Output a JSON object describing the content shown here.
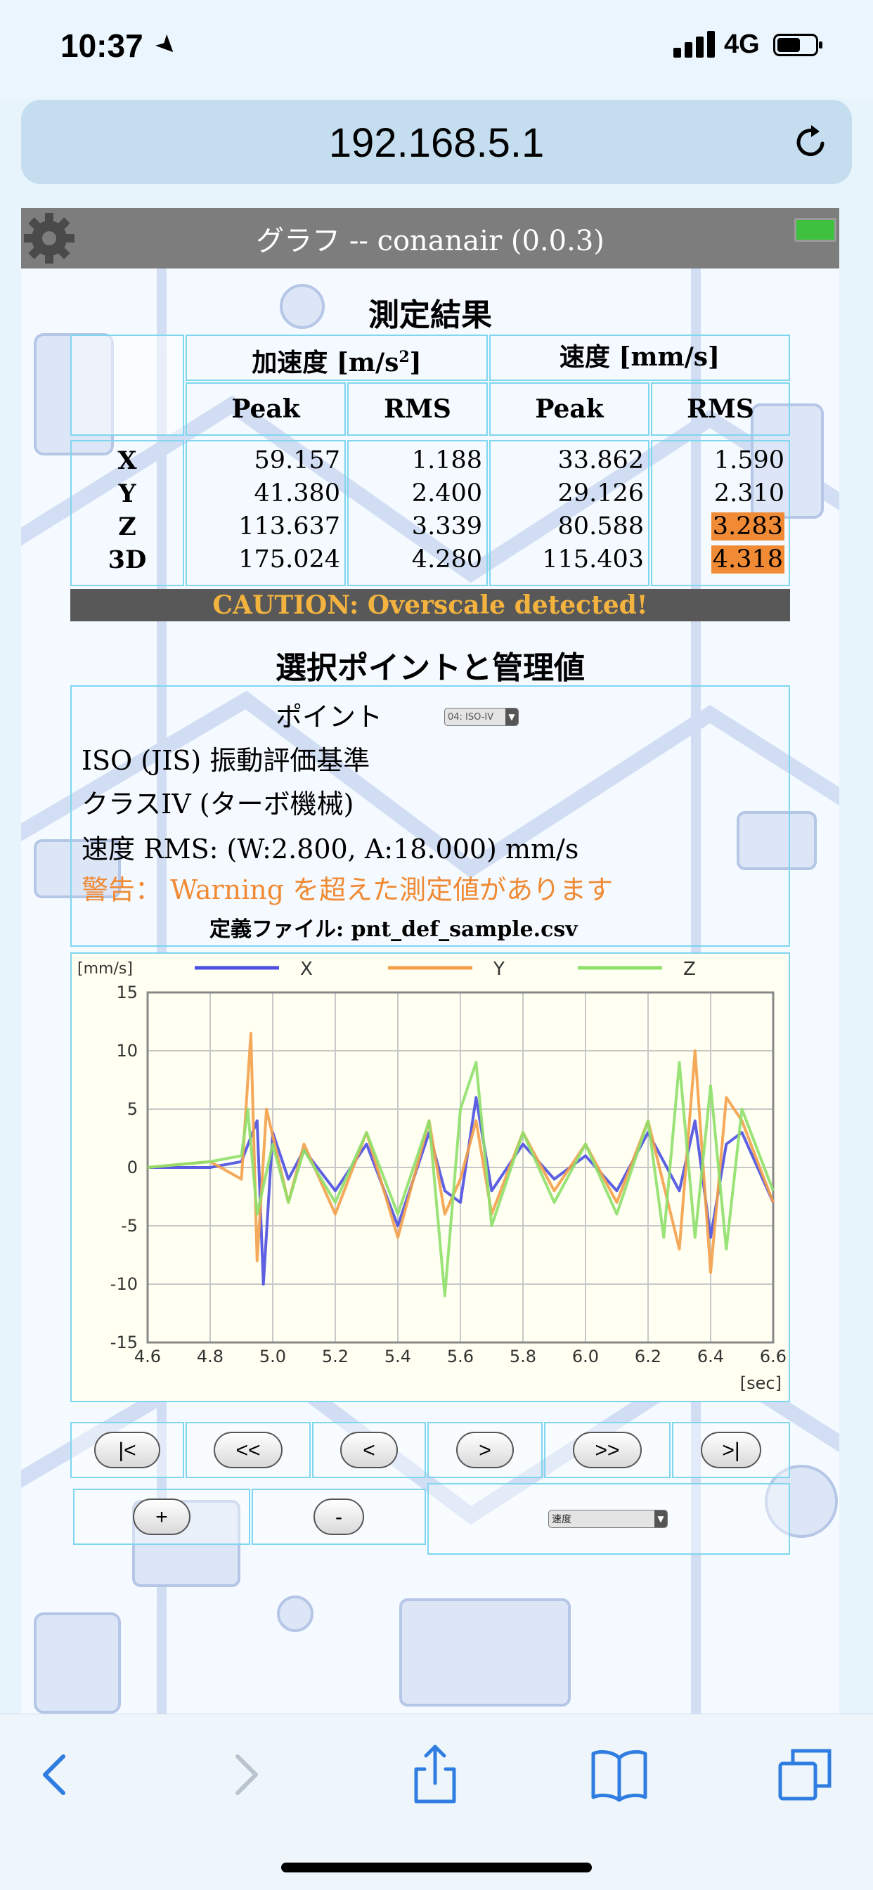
{
  "status_bar": {
    "time": "10:37",
    "network": "4G"
  },
  "browser": {
    "url": "192.168.5.1"
  },
  "header": {
    "title": "グラフ -- conanair (0.0.3)"
  },
  "results": {
    "title": "測定結果",
    "group_accel": "加速度 [m/s",
    "group_accel_sup": "2",
    "group_accel_close": "]",
    "group_vel": "速度 [mm/s]",
    "sub_headers": [
      "Peak",
      "RMS",
      "Peak",
      "RMS"
    ],
    "rows": [
      {
        "label": "X",
        "acc_peak": "59.157",
        "acc_rms": "1.188",
        "vel_peak": "33.862",
        "vel_rms": "1.590"
      },
      {
        "label": "Y",
        "acc_peak": "41.380",
        "acc_rms": "2.400",
        "vel_peak": "29.126",
        "vel_rms": "2.310"
      },
      {
        "label": "Z",
        "acc_peak": "113.637",
        "acc_rms": "3.339",
        "vel_peak": "80.588",
        "vel_rms": "3.283"
      },
      {
        "label": "3D",
        "acc_peak": "175.024",
        "acc_rms": "4.280",
        "vel_peak": "115.403",
        "vel_rms": "4.318"
      }
    ],
    "highlight_color": "#f08a34",
    "caution": "CAUTION: Overscale detected!"
  },
  "info": {
    "title": "選択ポイントと管理値",
    "point_label": "ポイント",
    "point_select": "04: ISO-IV",
    "standard": "ISO (JIS) 振動評価基準",
    "class": "クラスIV (ターボ機械)",
    "limits": "速度 RMS: (W:2.800, A:18.000) mm/s",
    "warning": "警告： Warning を超えた測定値があります",
    "def_file": "定義ファイル: pnt_def_sample.csv"
  },
  "chart_data": {
    "type": "line",
    "ylabel": "[mm/s]",
    "xlabel": "[sec]",
    "xlim": [
      4.6,
      6.6
    ],
    "ylim": [
      -15,
      15
    ],
    "x_ticks": [
      "4.6",
      "4.8",
      "5.0",
      "5.2",
      "5.4",
      "5.6",
      "5.8",
      "6.0",
      "6.2",
      "6.4",
      "6.6"
    ],
    "y_ticks": [
      "15",
      "10",
      "5",
      "0",
      "-5",
      "-10",
      "-15"
    ],
    "grid": true,
    "legend_placement": "top",
    "series": [
      {
        "name": "X",
        "color": "#4b4fe0",
        "x": [
          4.6,
          4.8,
          4.9,
          4.95,
          4.97,
          5.0,
          5.05,
          5.1,
          5.2,
          5.3,
          5.4,
          5.5,
          5.55,
          5.6,
          5.65,
          5.7,
          5.8,
          5.9,
          6.0,
          6.1,
          6.2,
          6.3,
          6.35,
          6.4,
          6.45,
          6.5,
          6.6
        ],
        "y": [
          0,
          0,
          0.5,
          4,
          -10,
          3,
          -1,
          1.5,
          -2,
          2,
          -5,
          3,
          -2,
          -3,
          6,
          -2,
          2,
          -1,
          1,
          -2,
          3,
          -2,
          4,
          -6,
          2,
          3,
          -3
        ]
      },
      {
        "name": "Y",
        "color": "#f4a04a",
        "x": [
          4.6,
          4.8,
          4.9,
          4.93,
          4.95,
          4.98,
          5.05,
          5.1,
          5.2,
          5.3,
          5.4,
          5.5,
          5.55,
          5.6,
          5.65,
          5.7,
          5.8,
          5.9,
          6.0,
          6.1,
          6.2,
          6.3,
          6.35,
          6.4,
          6.45,
          6.5,
          6.6
        ],
        "y": [
          0,
          0.5,
          -1,
          11.5,
          -8,
          5,
          -3,
          2,
          -4,
          3,
          -6,
          4,
          -4,
          -1,
          4,
          -4,
          3,
          -2,
          2,
          -3,
          4,
          -7,
          10,
          -9,
          6,
          4,
          -3
        ]
      },
      {
        "name": "Z",
        "color": "#8ee06a",
        "x": [
          4.6,
          4.8,
          4.9,
          4.92,
          4.95,
          5.0,
          5.05,
          5.1,
          5.2,
          5.3,
          5.4,
          5.5,
          5.55,
          5.6,
          5.65,
          5.7,
          5.8,
          5.9,
          6.0,
          6.1,
          6.2,
          6.25,
          6.3,
          6.35,
          6.4,
          6.45,
          6.5,
          6.6
        ],
        "y": [
          0,
          0.5,
          1,
          5,
          -4,
          2,
          -3,
          1.5,
          -3,
          3,
          -4,
          4,
          -11,
          5,
          9,
          -5,
          3,
          -3,
          2,
          -4,
          4,
          -6,
          9,
          -6,
          7,
          -7,
          5,
          -2
        ]
      }
    ]
  },
  "controls": {
    "first": "|<",
    "prev_fast": "<<",
    "prev": "<",
    "next": ">",
    "next_fast": ">>",
    "last": ">|",
    "zoom_in": "+",
    "zoom_out": "-",
    "mode_select": "速度"
  }
}
